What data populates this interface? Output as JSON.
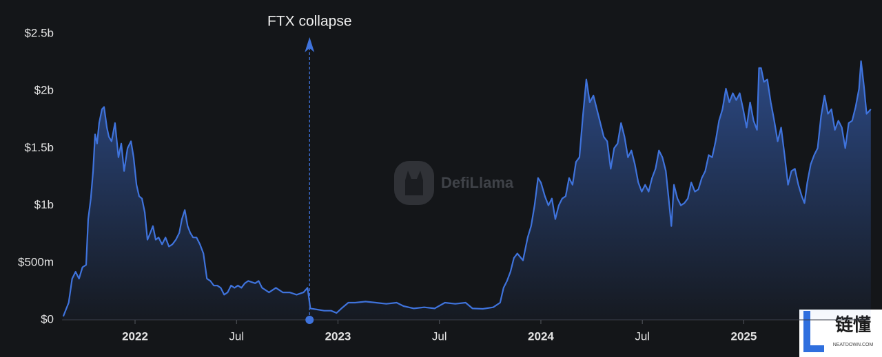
{
  "chart_data": {
    "type": "area",
    "color": "#3f73dc",
    "grid": false,
    "watermark": "DefiLlama",
    "badge": {
      "title": "链懂",
      "subtitle": "NEATDOWN.COM"
    },
    "annotations": [
      {
        "text": "FTX collapse",
        "x": 2022.86
      }
    ],
    "xlim": [
      2021.64,
      2025.62
    ],
    "xticks": [
      {
        "value": 2022,
        "label": "2022"
      },
      {
        "value": 2022.5,
        "label": "Jul"
      },
      {
        "value": 2023,
        "label": "2023"
      },
      {
        "value": 2023.5,
        "label": "Jul"
      },
      {
        "value": 2024,
        "label": "2024"
      },
      {
        "value": 2024.5,
        "label": "Jul"
      },
      {
        "value": 2025,
        "label": "2025"
      }
    ],
    "ylim": [
      0,
      2.5
    ],
    "yticks": [
      {
        "value": 0,
        "label": "$0"
      },
      {
        "value": 0.5,
        "label": "$500m"
      },
      {
        "value": 1,
        "label": "$1b"
      },
      {
        "value": 1.5,
        "label": "$1.5b"
      },
      {
        "value": 2,
        "label": "$2b"
      },
      {
        "value": 2.5,
        "label": "$2.5b"
      }
    ],
    "x": [
      2021.646,
      2021.673,
      2021.69,
      2021.707,
      2021.724,
      2021.741,
      2021.759,
      2021.769,
      2021.782,
      2021.793,
      2021.803,
      2021.813,
      2021.823,
      2021.837,
      2021.847,
      2021.861,
      2021.871,
      2021.884,
      2021.901,
      2021.918,
      2021.932,
      2021.946,
      2021.963,
      2021.98,
      2021.993,
      2022.007,
      2022.02,
      2022.034,
      2022.048,
      2022.061,
      2022.075,
      2022.088,
      2022.102,
      2022.116,
      2022.133,
      2022.15,
      2022.167,
      2022.184,
      2022.201,
      2022.218,
      2022.231,
      2022.245,
      2022.259,
      2022.272,
      2022.286,
      2022.303,
      2022.32,
      2022.337,
      2022.354,
      2022.371,
      2022.388,
      2022.405,
      2022.422,
      2022.439,
      2022.456,
      2022.473,
      2022.49,
      2022.507,
      2022.524,
      2022.541,
      2022.558,
      2022.592,
      2022.609,
      2022.626,
      2022.66,
      2022.694,
      2022.728,
      2022.762,
      2022.796,
      2022.83,
      2022.85,
      2022.864,
      2022.898,
      2022.932,
      2022.966,
      2022.993,
      2023.017,
      2023.051,
      2023.085,
      2023.136,
      2023.187,
      2023.238,
      2023.289,
      2023.323,
      2023.374,
      2023.425,
      2023.476,
      2023.527,
      2023.578,
      2023.629,
      2023.663,
      2023.714,
      2023.765,
      2023.799,
      2023.816,
      2023.833,
      2023.85,
      2023.867,
      2023.884,
      2023.912,
      2023.935,
      2023.952,
      2023.969,
      2023.986,
      2024.0,
      2024.02,
      2024.037,
      2024.054,
      2024.071,
      2024.088,
      2024.105,
      2024.122,
      2024.139,
      2024.156,
      2024.173,
      2024.19,
      2024.207,
      2024.224,
      2024.241,
      2024.259,
      2024.276,
      2024.293,
      2024.31,
      2024.327,
      2024.344,
      2024.361,
      2024.378,
      2024.395,
      2024.412,
      2024.429,
      2024.446,
      2024.463,
      2024.48,
      2024.497,
      2024.514,
      2024.531,
      2024.548,
      2024.565,
      2024.582,
      2024.599,
      2024.616,
      2024.633,
      2024.643,
      2024.656,
      2024.673,
      2024.69,
      2024.707,
      2024.724,
      2024.741,
      2024.759,
      2024.776,
      2024.793,
      2024.81,
      2024.827,
      2024.844,
      2024.861,
      2024.878,
      2024.895,
      2024.912,
      2024.929,
      2024.946,
      2024.963,
      2024.98,
      2024.997,
      2025.014,
      2025.031,
      2025.048,
      2025.065,
      2025.075,
      2025.085,
      2025.099,
      2025.116,
      2025.133,
      2025.15,
      2025.167,
      2025.184,
      2025.201,
      2025.218,
      2025.235,
      2025.252,
      2025.269,
      2025.286,
      2025.299,
      2025.313,
      2025.33,
      2025.347,
      2025.364,
      2025.381,
      2025.398,
      2025.415,
      2025.432,
      2025.449,
      2025.466,
      2025.483,
      2025.5,
      2025.517,
      2025.534,
      2025.551,
      2025.568,
      2025.578,
      2025.592,
      2025.605,
      2025.626
    ],
    "values": [
      0.03,
      0.15,
      0.36,
      0.42,
      0.36,
      0.46,
      0.48,
      0.88,
      1.06,
      1.3,
      1.62,
      1.54,
      1.72,
      1.84,
      1.86,
      1.68,
      1.6,
      1.56,
      1.72,
      1.42,
      1.54,
      1.3,
      1.5,
      1.56,
      1.42,
      1.18,
      1.08,
      1.06,
      0.94,
      0.7,
      0.76,
      0.82,
      0.7,
      0.72,
      0.66,
      0.72,
      0.64,
      0.66,
      0.7,
      0.76,
      0.88,
      0.96,
      0.82,
      0.76,
      0.72,
      0.72,
      0.66,
      0.58,
      0.36,
      0.34,
      0.3,
      0.3,
      0.28,
      0.22,
      0.24,
      0.3,
      0.28,
      0.3,
      0.28,
      0.32,
      0.34,
      0.32,
      0.34,
      0.28,
      0.24,
      0.28,
      0.24,
      0.24,
      0.22,
      0.24,
      0.28,
      0.1,
      0.09,
      0.08,
      0.08,
      0.06,
      0.1,
      0.15,
      0.15,
      0.16,
      0.15,
      0.14,
      0.15,
      0.12,
      0.1,
      0.11,
      0.1,
      0.15,
      0.14,
      0.15,
      0.1,
      0.096,
      0.11,
      0.15,
      0.28,
      0.34,
      0.42,
      0.54,
      0.58,
      0.52,
      0.72,
      0.82,
      1.0,
      1.24,
      1.2,
      1.08,
      1.0,
      1.06,
      0.88,
      1.0,
      1.06,
      1.08,
      1.24,
      1.18,
      1.38,
      1.42,
      1.78,
      2.1,
      1.9,
      1.96,
      1.84,
      1.72,
      1.6,
      1.56,
      1.32,
      1.5,
      1.54,
      1.72,
      1.6,
      1.42,
      1.48,
      1.36,
      1.2,
      1.12,
      1.18,
      1.12,
      1.24,
      1.32,
      1.48,
      1.42,
      1.3,
      1.0,
      0.82,
      1.18,
      1.06,
      1.0,
      1.02,
      1.06,
      1.2,
      1.12,
      1.14,
      1.24,
      1.3,
      1.44,
      1.42,
      1.56,
      1.74,
      1.84,
      2.02,
      1.9,
      1.98,
      1.92,
      1.98,
      1.84,
      1.68,
      1.9,
      1.74,
      1.66,
      2.2,
      2.2,
      2.08,
      2.1,
      1.9,
      1.74,
      1.56,
      1.68,
      1.44,
      1.18,
      1.3,
      1.32,
      1.18,
      1.08,
      1.02,
      1.2,
      1.36,
      1.44,
      1.5,
      1.78,
      1.96,
      1.8,
      1.84,
      1.66,
      1.74,
      1.68,
      1.5,
      1.72,
      1.74,
      1.86,
      2.02,
      2.26,
      2.04,
      1.8,
      1.84
    ]
  }
}
